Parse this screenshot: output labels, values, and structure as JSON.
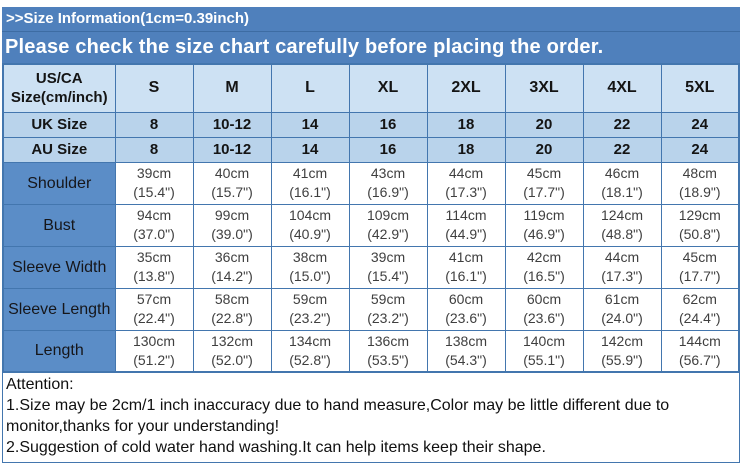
{
  "banners": {
    "line1": ">>Size Information(1cm=0.39inch)",
    "line2": "Please check the size chart carefully before placing the order."
  },
  "colors": {
    "banner_blue": "#4f80bc",
    "header_light_blue": "#cde1f3",
    "uk_au_light_blue": "#b9d3eb",
    "label_column_blue": "#5b8dc7",
    "grid_border_blue": "#4376ae",
    "data_text_gray": "#3f3f3f"
  },
  "table": {
    "corner": {
      "line1": "US/CA",
      "line2": "Size(cm/inch)"
    },
    "size_columns": [
      "S",
      "M",
      "L",
      "XL",
      "2XL",
      "3XL",
      "4XL",
      "5XL"
    ],
    "uk_row": {
      "label": "UK Size",
      "values": [
        "8",
        "10-12",
        "14",
        "16",
        "18",
        "20",
        "22",
        "24"
      ]
    },
    "au_row": {
      "label": "AU  Size",
      "values": [
        "8",
        "10-12",
        "14",
        "16",
        "18",
        "20",
        "22",
        "24"
      ]
    },
    "measurements": [
      {
        "label": "Shoulder",
        "cm": [
          "39cm",
          "40cm",
          "41cm",
          "43cm",
          "44cm",
          "45cm",
          "46cm",
          "48cm"
        ],
        "inch": [
          "(15.4\")",
          "(15.7\")",
          "(16.1\")",
          "(16.9\")",
          "(17.3\")",
          "(17.7\")",
          "(18.1\")",
          "(18.9\")"
        ]
      },
      {
        "label": "Bust",
        "cm": [
          "94cm",
          "99cm",
          "104cm",
          "109cm",
          "114cm",
          "119cm",
          "124cm",
          "129cm"
        ],
        "inch": [
          "(37.0\")",
          "(39.0\")",
          "(40.9\")",
          "(42.9\")",
          "(44.9\")",
          "(46.9\")",
          "(48.8\")",
          "(50.8\")"
        ]
      },
      {
        "label": "Sleeve Width",
        "cm": [
          "35cm",
          "36cm",
          "38cm",
          "39cm",
          "41cm",
          "42cm",
          "44cm",
          "45cm"
        ],
        "inch": [
          "(13.8\")",
          "(14.2\")",
          "(15.0\")",
          "(15.4\")",
          "(16.1\")",
          "(16.5\")",
          "(17.3\")",
          "(17.7\")"
        ]
      },
      {
        "label": "Sleeve Length",
        "cm": [
          "57cm",
          "58cm",
          "59cm",
          "59cm",
          "60cm",
          "60cm",
          "61cm",
          "62cm"
        ],
        "inch": [
          "(22.4\")",
          "(22.8\")",
          "(23.2\")",
          "(23.2\")",
          "(23.6\")",
          "(23.6\")",
          "(24.0\")",
          "(24.4\")"
        ]
      },
      {
        "label": "Length",
        "cm": [
          "130cm",
          "132cm",
          "134cm",
          "136cm",
          "138cm",
          "140cm",
          "142cm",
          "144cm"
        ],
        "inch": [
          "(51.2\")",
          "(52.0\")",
          "(52.8\")",
          "(53.5\")",
          "(54.3\")",
          "(55.1\")",
          "(55.9\")",
          "(56.7\")"
        ]
      }
    ]
  },
  "attention": {
    "title": "Attention:",
    "note1": "1.Size may be 2cm/1 inch inaccuracy due to hand measure,Color may be little different due to monitor,thanks for your understanding!",
    "note2": "2.Suggestion of cold water hand washing.It can help items keep their shape."
  }
}
